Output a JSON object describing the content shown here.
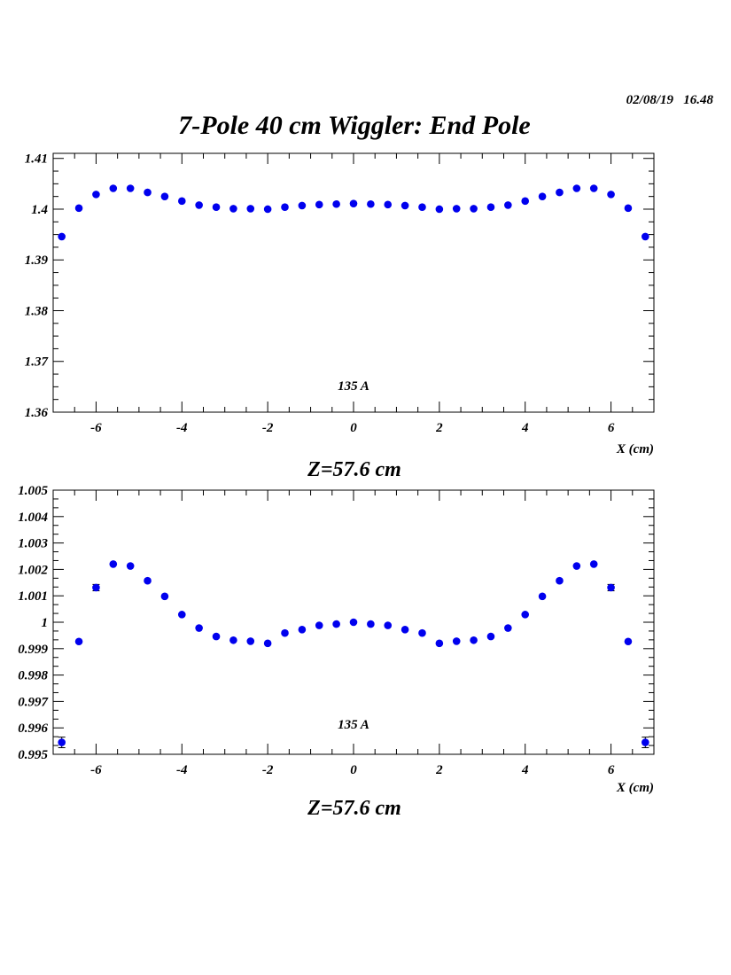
{
  "header": {
    "stamp": "02/08/19   16.48",
    "title": "7-Pole 40 cm Wiggler: End Pole"
  },
  "chart_data": [
    {
      "type": "scatter",
      "xlabel": "X (cm)",
      "annotation": "135 A",
      "subtitle": "Z=57.6 cm",
      "xlim": [
        -7.0,
        7.0
      ],
      "ylim": [
        1.36,
        1.411
      ],
      "xticks": [
        -6,
        -4,
        -2,
        0,
        2,
        4,
        6
      ],
      "yticks": [
        1.36,
        1.37,
        1.38,
        1.39,
        1.4,
        1.41
      ],
      "ytick_labels": [
        "1.36",
        "1.37",
        "1.38",
        "1.39",
        "1.4",
        "1.41"
      ],
      "x": [
        -6.8,
        -6.4,
        -6.0,
        -5.6,
        -5.2,
        -4.8,
        -4.4,
        -4.0,
        -3.6,
        -3.2,
        -2.8,
        -2.4,
        -2.0,
        -1.6,
        -1.2,
        -0.8,
        -0.4,
        0.0,
        0.4,
        0.8,
        1.2,
        1.6,
        2.0,
        2.4,
        2.8,
        3.2,
        3.6,
        4.0,
        4.4,
        4.8,
        5.2,
        5.6,
        6.0,
        6.4,
        6.8
      ],
      "y": [
        1.3946,
        1.4002,
        1.4029,
        1.4041,
        1.4041,
        1.4033,
        1.4025,
        1.4016,
        1.4008,
        1.4004,
        1.4001,
        1.4001,
        1.4,
        1.4004,
        1.4007,
        1.4009,
        1.401,
        1.4011,
        1.401,
        1.4009,
        1.4007,
        1.4004,
        1.4,
        1.4001,
        1.4001,
        1.4004,
        1.4008,
        1.4016,
        1.4025,
        1.4033,
        1.4041,
        1.4041,
        1.4029,
        1.4002,
        1.3946
      ],
      "yerr": [
        4e-05,
        4e-05,
        4e-05,
        4e-05,
        4e-05,
        4e-05,
        4e-05,
        4e-05,
        4e-05,
        4e-05,
        4e-05,
        4e-05,
        4e-05,
        4e-05,
        4e-05,
        4e-05,
        4e-05,
        4e-05,
        4e-05,
        4e-05,
        4e-05,
        4e-05,
        4e-05,
        4e-05,
        4e-05,
        4e-05,
        4e-05,
        4e-05,
        4e-05,
        4e-05,
        4e-05,
        4e-05,
        4e-05,
        4e-05,
        4e-05
      ],
      "point_color": "#0000ee"
    },
    {
      "type": "scatter",
      "xlabel": "X (cm)",
      "annotation": "135 A",
      "subtitle": "Z=57.6 cm",
      "xlim": [
        -7.0,
        7.0
      ],
      "ylim": [
        0.995,
        1.005
      ],
      "xticks": [
        -6,
        -4,
        -2,
        0,
        2,
        4,
        6
      ],
      "yticks": [
        0.995,
        0.996,
        0.997,
        0.998,
        0.999,
        1.0,
        1.001,
        1.002,
        1.003,
        1.004,
        1.005
      ],
      "ytick_labels": [
        "0.995",
        "0.996",
        "0.997",
        "0.998",
        "0.999",
        "1",
        "1.001",
        "1.002",
        "1.003",
        "1.004",
        "1.005"
      ],
      "x": [
        -6.8,
        -6.4,
        -6.0,
        -5.6,
        -5.2,
        -4.8,
        -4.4,
        -4.0,
        -3.6,
        -3.2,
        -2.8,
        -2.4,
        -2.0,
        -1.6,
        -1.2,
        -0.8,
        -0.4,
        0.0,
        0.4,
        0.8,
        1.2,
        1.6,
        2.0,
        2.4,
        2.8,
        3.2,
        3.6,
        4.0,
        4.4,
        4.8,
        5.2,
        5.6,
        6.0,
        6.4,
        6.8
      ],
      "y": [
        0.99545,
        0.99927,
        1.00131,
        1.0022,
        1.00213,
        1.00157,
        1.00098,
        1.00029,
        0.99978,
        0.99946,
        0.99932,
        0.99928,
        0.9992,
        0.99959,
        0.99972,
        0.99988,
        0.99993,
        1.0,
        0.99993,
        0.99988,
        0.99972,
        0.99959,
        0.9992,
        0.99928,
        0.99932,
        0.99946,
        0.99978,
        1.00029,
        1.00098,
        1.00157,
        1.00213,
        1.0022,
        1.00131,
        0.99927,
        0.99545
      ],
      "yerr": [
        0.0002,
        8e-05,
        0.00012,
        8e-05,
        8e-05,
        8e-05,
        8e-05,
        8e-05,
        8e-05,
        8e-05,
        8e-05,
        8e-05,
        8e-05,
        8e-05,
        8e-05,
        8e-05,
        8e-05,
        8e-05,
        8e-05,
        8e-05,
        8e-05,
        8e-05,
        8e-05,
        8e-05,
        8e-05,
        8e-05,
        8e-05,
        8e-05,
        8e-05,
        8e-05,
        8e-05,
        8e-05,
        0.00012,
        8e-05,
        0.0002
      ],
      "point_color": "#0000ee"
    }
  ]
}
